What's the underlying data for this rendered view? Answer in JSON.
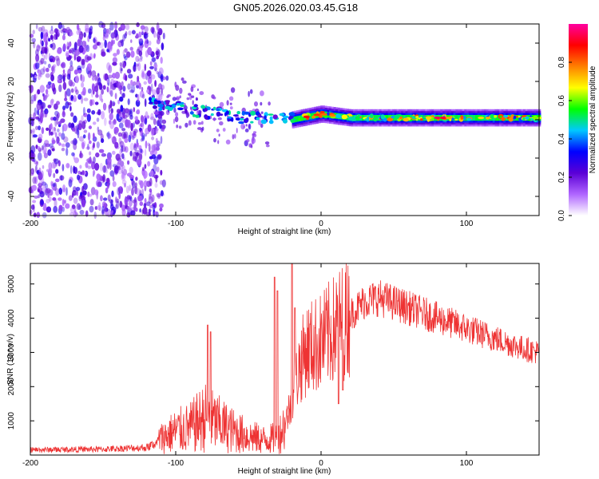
{
  "title": "GN05.2026.020.03.45.G18",
  "chart_data": [
    {
      "type": "heatmap",
      "name": "spectrogram",
      "xlabel": "Height of straight line (km)",
      "ylabel": "Frequency (Hz)",
      "xlim": [
        -200,
        150
      ],
      "ylim": [
        -50,
        50
      ],
      "xticks": [
        -200,
        -100,
        0,
        100
      ],
      "yticks": [
        -40,
        -20,
        0,
        20,
        40
      ],
      "xtick_labels": [
        "-200",
        "-100",
        "0",
        "100"
      ],
      "ytick_labels": [
        "-40",
        "-20",
        "0",
        "20",
        "40"
      ],
      "colorbar": {
        "label": "Normalized spectral amplitude",
        "range": [
          0,
          1
        ],
        "ticks": [
          0,
          0.2,
          0.4,
          0.6,
          0.8
        ],
        "tick_labels": [
          "0.0",
          "0.2",
          "0.4",
          "0.6",
          "0.8"
        ],
        "colors": [
          "#ffffff",
          "#b066ff",
          "#5b00d6",
          "#0000ff",
          "#00c8ff",
          "#00ff00",
          "#ffff00",
          "#ff8000",
          "#ff0000",
          "#ff00a0"
        ]
      },
      "band_center_hz": [
        {
          "x": -115,
          "y": 8
        },
        {
          "x": -100,
          "y": 7
        },
        {
          "x": -80,
          "y": 4
        },
        {
          "x": -60,
          "y": 2
        },
        {
          "x": -40,
          "y": 0
        },
        {
          "x": -20,
          "y": 0
        },
        {
          "x": 0,
          "y": 3
        },
        {
          "x": 20,
          "y": 1
        },
        {
          "x": 80,
          "y": 1
        },
        {
          "x": 150,
          "y": 1
        }
      ]
    },
    {
      "type": "line",
      "name": "snr",
      "xlabel": "Height of straight line (km)",
      "ylabel": "SNR (10 * v/v)",
      "xlim": [
        -200,
        150
      ],
      "ylim": [
        0,
        5600
      ],
      "xticks": [
        -200,
        -100,
        0,
        100
      ],
      "yticks": [
        1000,
        2000,
        3000,
        4000,
        5000
      ],
      "xtick_labels": [
        "-200",
        "-100",
        "0",
        "100"
      ],
      "ytick_labels": [
        "1000",
        "2000",
        "3000",
        "4000",
        "5000"
      ],
      "color": "#ee3333",
      "envelope": [
        {
          "x": -200,
          "y": 180
        },
        {
          "x": -150,
          "y": 200
        },
        {
          "x": -120,
          "y": 260
        },
        {
          "x": -112,
          "y": 450
        },
        {
          "x": -100,
          "y": 700
        },
        {
          "x": -90,
          "y": 800
        },
        {
          "x": -80,
          "y": 1100
        },
        {
          "x": -70,
          "y": 900
        },
        {
          "x": -60,
          "y": 700
        },
        {
          "x": -50,
          "y": 550
        },
        {
          "x": -40,
          "y": 450
        },
        {
          "x": -30,
          "y": 500
        },
        {
          "x": -25,
          "y": 900
        },
        {
          "x": -20,
          "y": 1600
        },
        {
          "x": -15,
          "y": 2600
        },
        {
          "x": -10,
          "y": 3100
        },
        {
          "x": 0,
          "y": 3300
        },
        {
          "x": 10,
          "y": 3700
        },
        {
          "x": 20,
          "y": 4100
        },
        {
          "x": 30,
          "y": 4500
        },
        {
          "x": 40,
          "y": 4600
        },
        {
          "x": 60,
          "y": 4300
        },
        {
          "x": 80,
          "y": 4000
        },
        {
          "x": 100,
          "y": 3700
        },
        {
          "x": 120,
          "y": 3400
        },
        {
          "x": 140,
          "y": 3100
        },
        {
          "x": 150,
          "y": 3000
        }
      ],
      "spikes": [
        {
          "x": -78,
          "y": 3800
        },
        {
          "x": -76,
          "y": 3600
        },
        {
          "x": -32,
          "y": 5200
        },
        {
          "x": -30,
          "y": 4800
        },
        {
          "x": -20,
          "y": 5600
        },
        {
          "x": -18,
          "y": 4300
        },
        {
          "x": 12,
          "y": 1500
        },
        {
          "x": 15,
          "y": 1900
        }
      ]
    }
  ]
}
